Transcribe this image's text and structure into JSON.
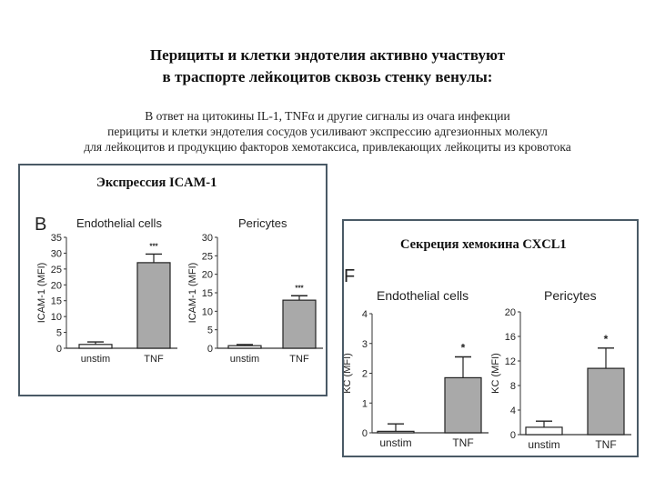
{
  "header": {
    "title_line1": "Перициты  и клетки эндотелия активно участвуют",
    "title_line2": "в траспорте лейкоцитов сквозь стенку венулы:",
    "subtitle_line1": "В ответ на цитокины  IL-1, TNFα  и другие сигналы из очага инфекции",
    "subtitle_line2": "перициты и клетки эндотелия сосудов усиливают экспрессию адгезионных молекул",
    "subtitle_line3": "для лейкоцитов и продукцию факторов хемотаксиса, привлекающих лейкоциты из кровотока"
  },
  "panels": {
    "left": {
      "title": "Экспрессия ICAM-1",
      "letter": "B"
    },
    "right": {
      "title": "Секреция хемокина CXCL1",
      "letter": "F"
    }
  },
  "chart_data": [
    {
      "type": "bar",
      "panel": "B",
      "title": "Endothelial cells",
      "ylabel": "ICAM-1 (MFI)",
      "ylim": [
        0,
        35
      ],
      "yticks": [
        0,
        5,
        10,
        15,
        20,
        25,
        30,
        35
      ],
      "categories": [
        "unstim",
        "TNF"
      ],
      "values": [
        1.2,
        27
      ],
      "errors": [
        0.8,
        2.7
      ],
      "annotations": [
        "",
        "***"
      ],
      "bar_colors": [
        "#ffffff",
        "#a9a9a9"
      ]
    },
    {
      "type": "bar",
      "panel": "B",
      "title": "Pericytes",
      "ylabel": "ICAM-1 (MFI)",
      "ylim": [
        0,
        30
      ],
      "yticks": [
        0,
        5,
        10,
        15,
        20,
        25,
        30
      ],
      "categories": [
        "unstim",
        "TNF"
      ],
      "values": [
        0.7,
        13
      ],
      "errors": [
        0.3,
        1.2
      ],
      "annotations": [
        "",
        "***"
      ],
      "bar_colors": [
        "#ffffff",
        "#a9a9a9"
      ]
    },
    {
      "type": "bar",
      "panel": "F",
      "title": "Endothelial cells",
      "ylabel": "KC (MFI)",
      "ylim": [
        0,
        4
      ],
      "yticks": [
        0,
        1,
        2,
        3,
        4
      ],
      "categories": [
        "unstim",
        "TNF"
      ],
      "values": [
        0.05,
        1.85
      ],
      "errors": [
        0.25,
        0.7
      ],
      "annotations": [
        "",
        "*"
      ],
      "bar_colors": [
        "#ffffff",
        "#a9a9a9"
      ]
    },
    {
      "type": "bar",
      "panel": "F",
      "title": "Pericytes",
      "ylabel": "KC (MFI)",
      "ylim": [
        0,
        20
      ],
      "yticks": [
        0,
        4,
        8,
        12,
        16,
        20
      ],
      "categories": [
        "unstim",
        "TNF"
      ],
      "values": [
        1.2,
        10.8
      ],
      "errors": [
        1.0,
        3.3
      ],
      "annotations": [
        "",
        "*"
      ],
      "bar_colors": [
        "#ffffff",
        "#a9a9a9"
      ]
    }
  ]
}
